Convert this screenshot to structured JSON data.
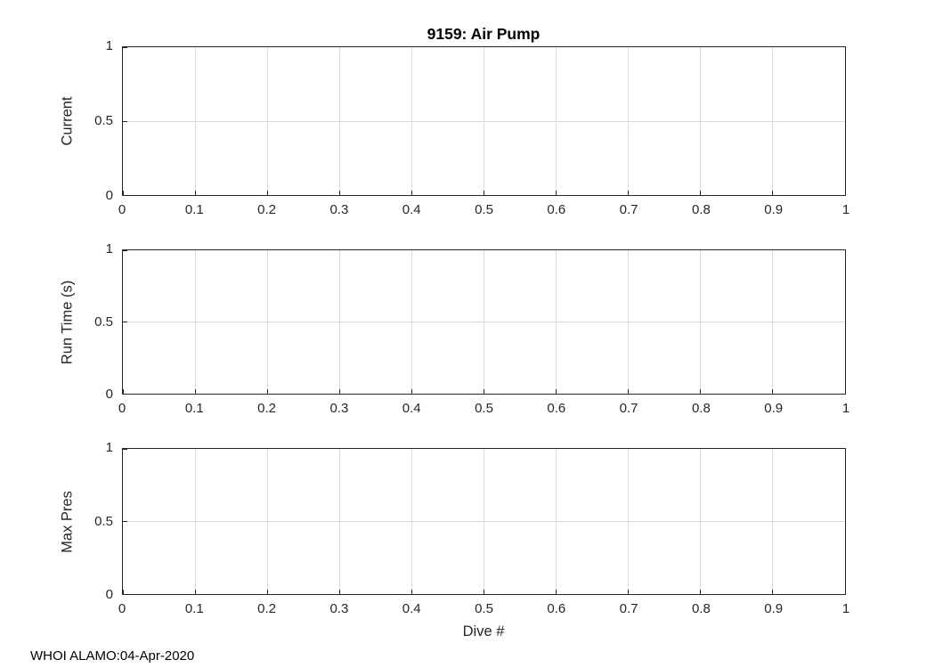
{
  "figure": {
    "title": "9159: Air Pump",
    "xlabel": "Dive #",
    "footer": "WHOI ALAMO:04-Apr-2020"
  },
  "colors": {
    "grid": "#dbdbdb",
    "axis": "#262626",
    "title": "#000000"
  },
  "chart_data": [
    {
      "type": "line",
      "title": "9159: Air Pump",
      "ylabel": "Current",
      "xlabel": "",
      "xlim": [
        0,
        1
      ],
      "ylim": [
        0,
        1
      ],
      "xticks": [
        0,
        0.1,
        0.2,
        0.3,
        0.4,
        0.5,
        0.6,
        0.7,
        0.8,
        0.9,
        1
      ],
      "xtick_labels": [
        "0",
        "0.1",
        "0.2",
        "0.3",
        "0.4",
        "0.5",
        "0.6",
        "0.7",
        "0.8",
        "0.9",
        "1"
      ],
      "yticks": [
        0,
        0.5,
        1
      ],
      "ytick_labels": [
        "0",
        "0.5",
        "1"
      ],
      "grid": true,
      "legend": null,
      "series": []
    },
    {
      "type": "line",
      "title": "",
      "ylabel": "Run Time (s)",
      "xlabel": "",
      "xlim": [
        0,
        1
      ],
      "ylim": [
        0,
        1
      ],
      "xticks": [
        0,
        0.1,
        0.2,
        0.3,
        0.4,
        0.5,
        0.6,
        0.7,
        0.8,
        0.9,
        1
      ],
      "xtick_labels": [
        "0",
        "0.1",
        "0.2",
        "0.3",
        "0.4",
        "0.5",
        "0.6",
        "0.7",
        "0.8",
        "0.9",
        "1"
      ],
      "yticks": [
        0,
        0.5,
        1
      ],
      "ytick_labels": [
        "0",
        "0.5",
        "1"
      ],
      "grid": true,
      "legend": null,
      "series": []
    },
    {
      "type": "line",
      "title": "",
      "ylabel": "Max Pres",
      "xlabel": "Dive #",
      "xlim": [
        0,
        1
      ],
      "ylim": [
        0,
        1
      ],
      "xticks": [
        0,
        0.1,
        0.2,
        0.3,
        0.4,
        0.5,
        0.6,
        0.7,
        0.8,
        0.9,
        1
      ],
      "xtick_labels": [
        "0",
        "0.1",
        "0.2",
        "0.3",
        "0.4",
        "0.5",
        "0.6",
        "0.7",
        "0.8",
        "0.9",
        "1"
      ],
      "yticks": [
        0,
        0.5,
        1
      ],
      "ytick_labels": [
        "0",
        "0.5",
        "1"
      ],
      "grid": true,
      "legend": null,
      "series": []
    }
  ]
}
